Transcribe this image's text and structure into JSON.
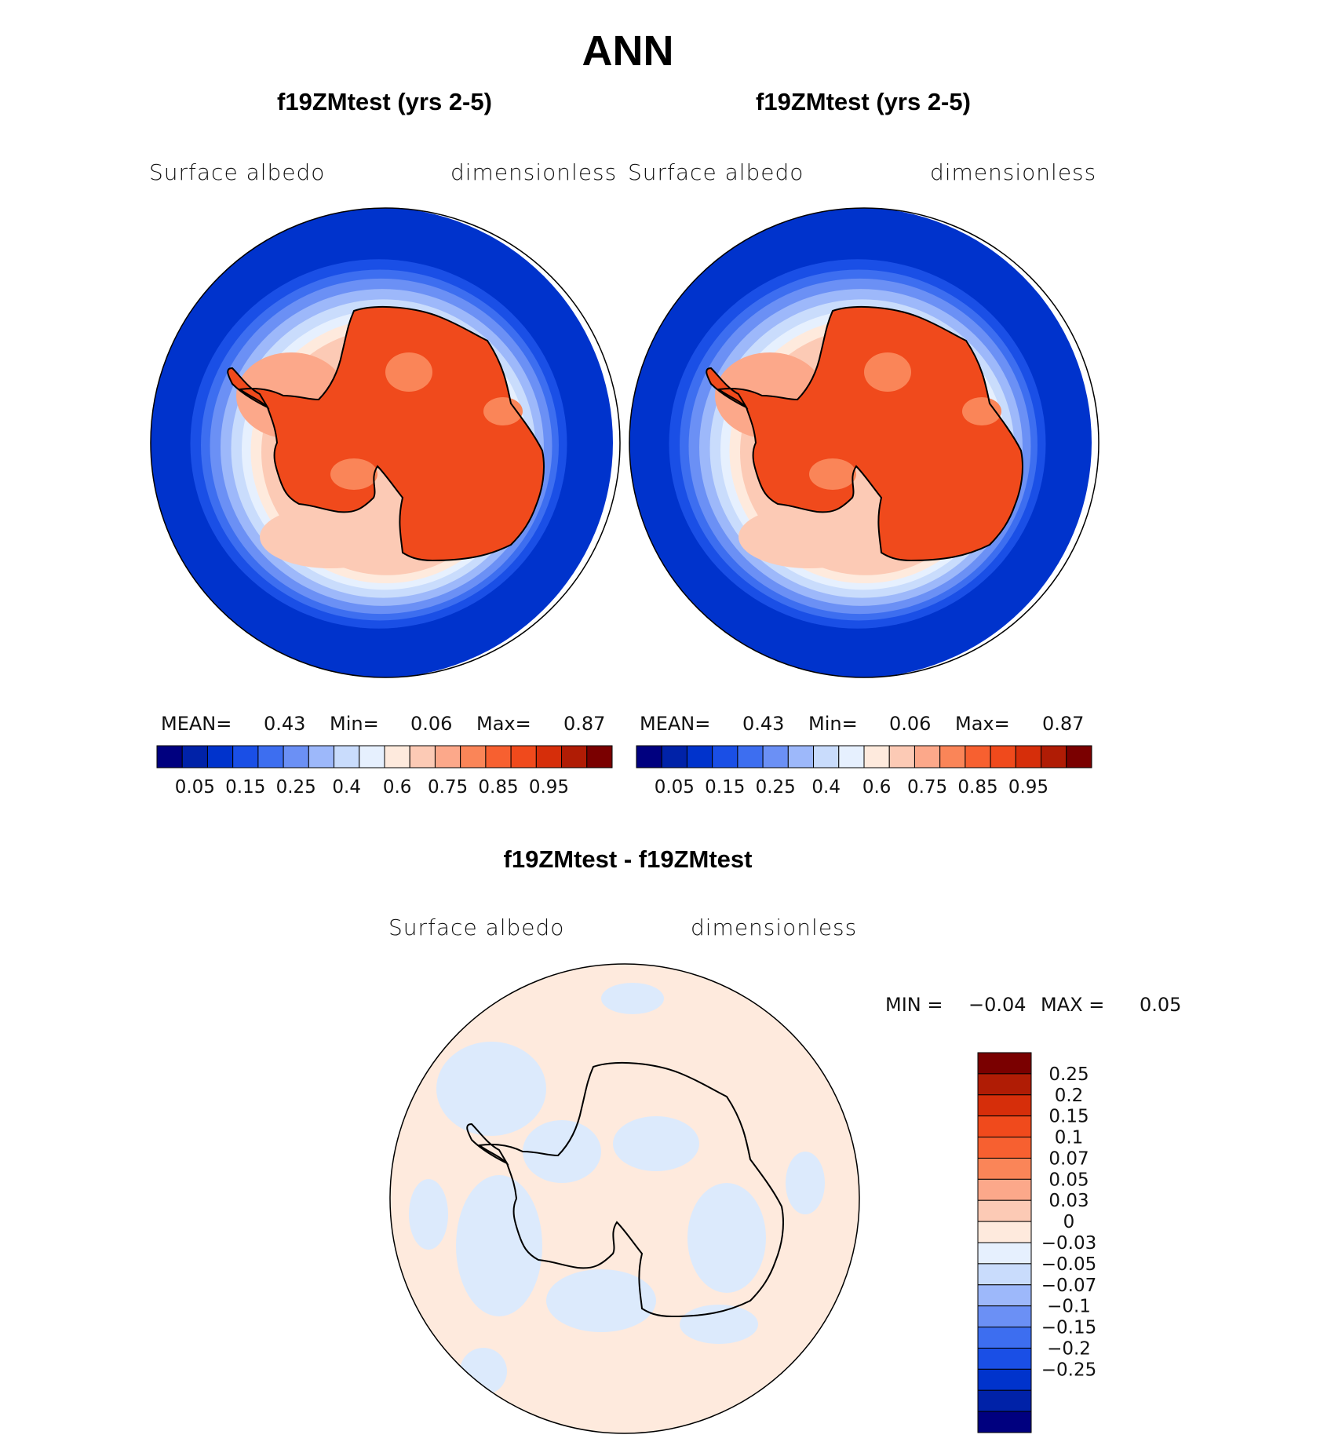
{
  "title": "ANN",
  "panels": [
    {
      "id": "left",
      "title": "f19ZMtest (yrs 2-5)",
      "variable": "Surface albedo",
      "units": "dimensionless",
      "stats": {
        "mean_label": "MEAN=",
        "mean": "0.43",
        "min_label": "Min=",
        "min": "0.06",
        "max_label": "Max=",
        "max": "0.87"
      }
    },
    {
      "id": "right",
      "title": "f19ZMtest (yrs 2-5)",
      "variable": "Surface albedo",
      "units": "dimensionless",
      "stats": {
        "mean_label": "MEAN=",
        "mean": "0.43",
        "min_label": "Min=",
        "min": "0.06",
        "max_label": "Max=",
        "max": "0.87"
      }
    },
    {
      "id": "diff",
      "title": "f19ZMtest - f19ZMtest",
      "variable": "Surface albedo",
      "units": "dimensionless",
      "stats": {
        "min_label": "MIN =",
        "min": "−0.04",
        "max_label": "MAX =",
        "max": "0.05"
      }
    }
  ],
  "colorbar_main": {
    "colors": [
      "#00007f",
      "#0022a8",
      "#0033cc",
      "#1a4fe6",
      "#3d6ef0",
      "#6b90f5",
      "#9db8fa",
      "#c9dcfc",
      "#e6f0fe",
      "#feeadd",
      "#fccab5",
      "#fca88a",
      "#fa8558",
      "#f76030",
      "#f04a1c",
      "#d62e0a",
      "#b01c05",
      "#7a0000"
    ],
    "labels": [
      "0.05",
      "0.15",
      "0.25",
      "0.4",
      "0.6",
      "0.75",
      "0.85",
      "0.95"
    ]
  },
  "colorbar_diff": {
    "colors": [
      "#7a0000",
      "#b01c05",
      "#d62e0a",
      "#f04a1c",
      "#f76030",
      "#fa8558",
      "#fca88a",
      "#fccab5",
      "#feeadd",
      "#e6f0fe",
      "#c9dcfc",
      "#9db8fa",
      "#6b90f5",
      "#3d6ef0",
      "#1a4fe6",
      "#0033cc",
      "#0022a8",
      "#00007f"
    ],
    "labels": [
      "0.25",
      "0.2",
      "0.15",
      "0.1",
      "0.07",
      "0.05",
      "0.03",
      "0",
      "−0.03",
      "−0.05",
      "−0.07",
      "−0.1",
      "−0.15",
      "−0.2",
      "−0.25"
    ]
  },
  "map_colors": {
    "ocean_deep": "#0033cc",
    "land_ice": "#f04a1c",
    "diff_background": "#feeadd",
    "diff_negative": "#dceafc"
  }
}
